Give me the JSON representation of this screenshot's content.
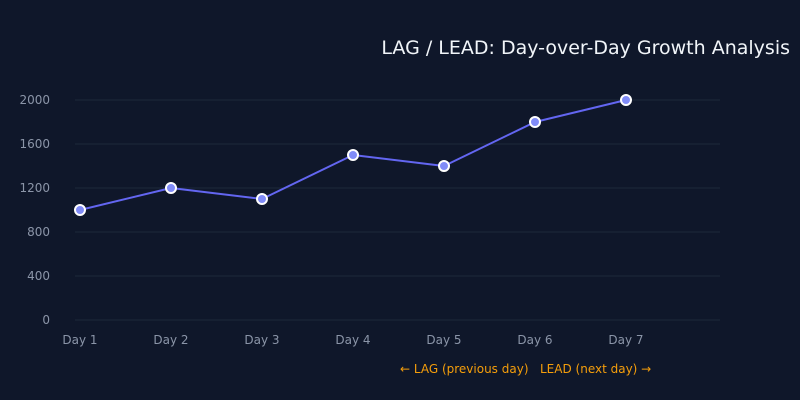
{
  "chart_data": {
    "type": "line",
    "title": "LAG / LEAD: Day-over-Day Growth Analysis",
    "xlabel": "",
    "ylabel": "",
    "categories": [
      "Day 1",
      "Day 2",
      "Day 3",
      "Day 4",
      "Day 5",
      "Day 6",
      "Day 7"
    ],
    "series": [
      {
        "values": [
          1000,
          1200,
          1100,
          1500,
          1400,
          1800,
          2000
        ]
      }
    ],
    "ylim": [
      0,
      2000
    ],
    "yticks": [
      0,
      400,
      800,
      1200,
      1600,
      2000
    ],
    "grid": true,
    "annotations": {
      "lag": "← LAG (previous day)",
      "lead": "LEAD (next day) →"
    },
    "colors": {
      "background": "#0f172a",
      "line": "#6366f1",
      "marker_fill": "#818cf8",
      "marker_stroke": "#ffffff",
      "grid": "#1e293b",
      "tick_text": "#8b95a8",
      "title_text": "#f1f5f9",
      "annotation": "#f59e0b"
    }
  }
}
